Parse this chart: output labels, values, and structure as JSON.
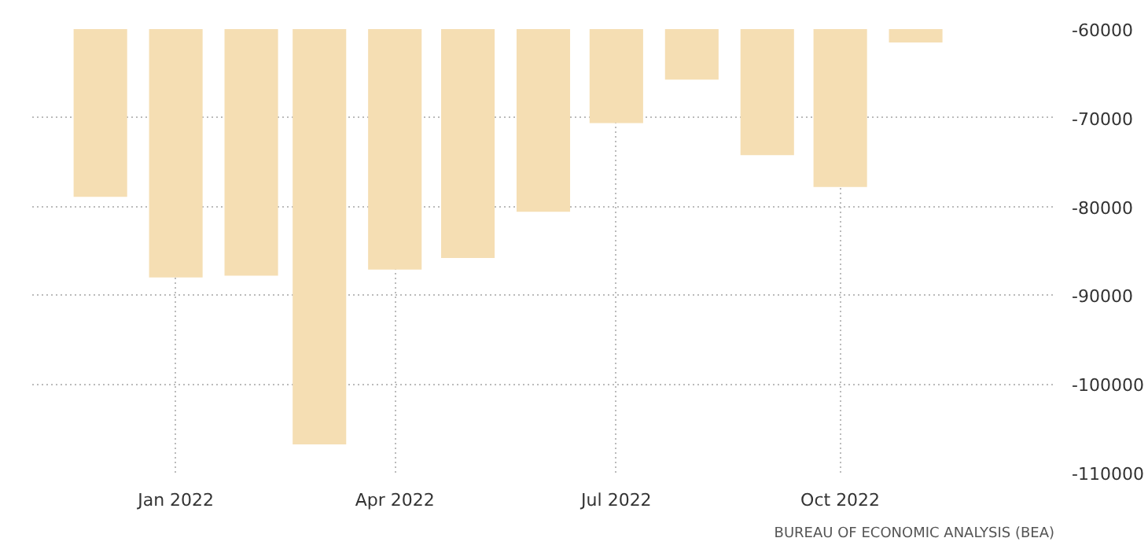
{
  "chart_data": {
    "type": "bar",
    "x": [
      "2021-12",
      "2022-01",
      "2022-02",
      "2022-03",
      "2022-04",
      "2022-05",
      "2022-06",
      "2022-07",
      "2022-08",
      "2022-09",
      "2022-10",
      "2022-11"
    ],
    "values": [
      -78900,
      -88000,
      -87800,
      -106800,
      -87100,
      -85800,
      -80600,
      -70600,
      -65700,
      -74200,
      -77800,
      -61500
    ],
    "color": "#f5deb3",
    "xlim": [
      "2021-11-03",
      "2022-12-28"
    ],
    "xticks": [
      {
        "value": "2022-01",
        "label": "Jan 2022"
      },
      {
        "value": "2022-04",
        "label": "Apr 2022"
      },
      {
        "value": "2022-07",
        "label": "Jul 2022"
      },
      {
        "value": "2022-10",
        "label": "Oct 2022"
      }
    ],
    "ylim": [
      -110000,
      -60000
    ],
    "yticks": [
      -110000,
      -100000,
      -90000,
      -80000,
      -70000,
      -60000
    ],
    "grid": true,
    "annotations": [
      "BUREAU OF ECONOMIC ANALYSIS (BEA)"
    ]
  }
}
